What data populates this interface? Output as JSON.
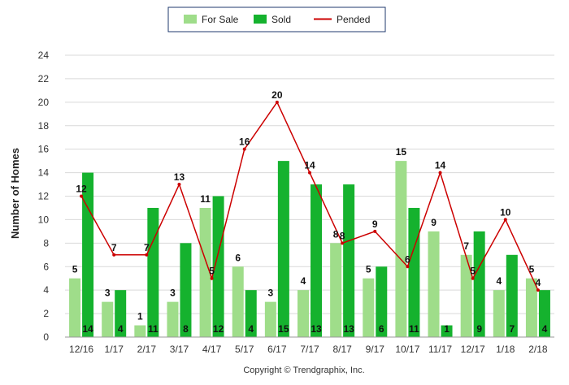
{
  "chart_data": {
    "type": "bar",
    "categories": [
      "12/16",
      "1/17",
      "2/17",
      "3/17",
      "4/17",
      "5/17",
      "6/17",
      "7/17",
      "8/17",
      "9/17",
      "10/17",
      "11/17",
      "12/17",
      "1/18",
      "2/18"
    ],
    "series": [
      {
        "name": "For Sale",
        "type": "bar",
        "color": "#9fdd8a",
        "values": [
          5,
          3,
          1,
          3,
          11,
          6,
          3,
          4,
          8,
          5,
          15,
          9,
          7,
          4,
          5
        ]
      },
      {
        "name": "Sold",
        "type": "bar",
        "color": "#15b22e",
        "values": [
          14,
          4,
          11,
          8,
          12,
          4,
          15,
          13,
          13,
          6,
          11,
          1,
          9,
          7,
          4
        ]
      },
      {
        "name": "Pended",
        "type": "line",
        "color": "#cc0000",
        "values": [
          12,
          7,
          7,
          13,
          5,
          16,
          20,
          14,
          8,
          9,
          6,
          14,
          5,
          10,
          4
        ]
      }
    ],
    "title": "",
    "xlabel": "",
    "ylabel": "Number of Homes",
    "ylim": [
      0,
      24
    ],
    "yticks": [
      0,
      2,
      4,
      6,
      8,
      10,
      12,
      14,
      16,
      18,
      20,
      22,
      24
    ],
    "grid": true,
    "legend": "top-center"
  },
  "footer": {
    "copyright": "Copyright © Trendgraphix, Inc."
  }
}
